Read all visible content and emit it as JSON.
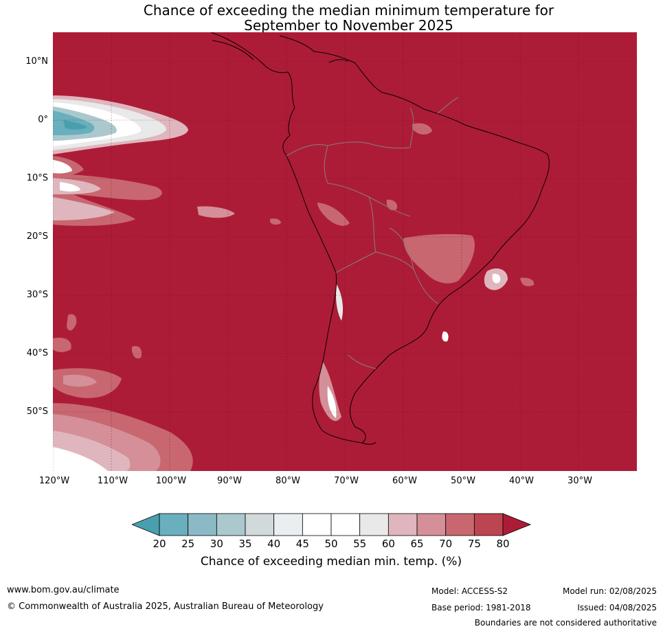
{
  "title": {
    "line1": "Chance of exceeding the median minimum temperature for",
    "line2": "September to November 2025"
  },
  "colors": {
    "above_80": "#ad1c37",
    "ocean_land_dominant": "#ad1c37",
    "bands": [
      "#4a9faf",
      "#6aafbd",
      "#8bb9c5",
      "#abc8ce",
      "#d2d9db",
      "#e9eff1",
      "#ffffff",
      "#ffffff",
      "#e9e9e9",
      "#dfb6bd",
      "#d48f98",
      "#c8676f",
      "#bd4451"
    ],
    "coastline": "#000000",
    "borders": "#808080",
    "gridlines": "#5a0a1a"
  },
  "map": {
    "lat_labels": [
      "10°N",
      "0°",
      "10°S",
      "20°S",
      "30°S",
      "40°S",
      "50°S"
    ],
    "lon_labels": [
      "120°W",
      "110°W",
      "100°W",
      "90°W",
      "80°W",
      "70°W",
      "60°W",
      "50°W",
      "40°W",
      "30°W"
    ]
  },
  "legend": {
    "ticks": [
      "20",
      "25",
      "30",
      "35",
      "40",
      "45",
      "50",
      "55",
      "60",
      "65",
      "70",
      "75",
      "80"
    ],
    "title": "Chance of exceeding median min. temp. (%)"
  },
  "footer": {
    "website": "www.bom.gov.au/climate",
    "copyright": "© Commonwealth of Australia 2025, Australian Bureau of Meteorology",
    "model": "Model: ACCESS-S2",
    "base_period": "Base period: 1981-2018",
    "model_run": "Model run: 02/08/2025",
    "issued": "Issued: 04/08/2025",
    "disclaimer": "Boundaries are not considered authoritative"
  }
}
